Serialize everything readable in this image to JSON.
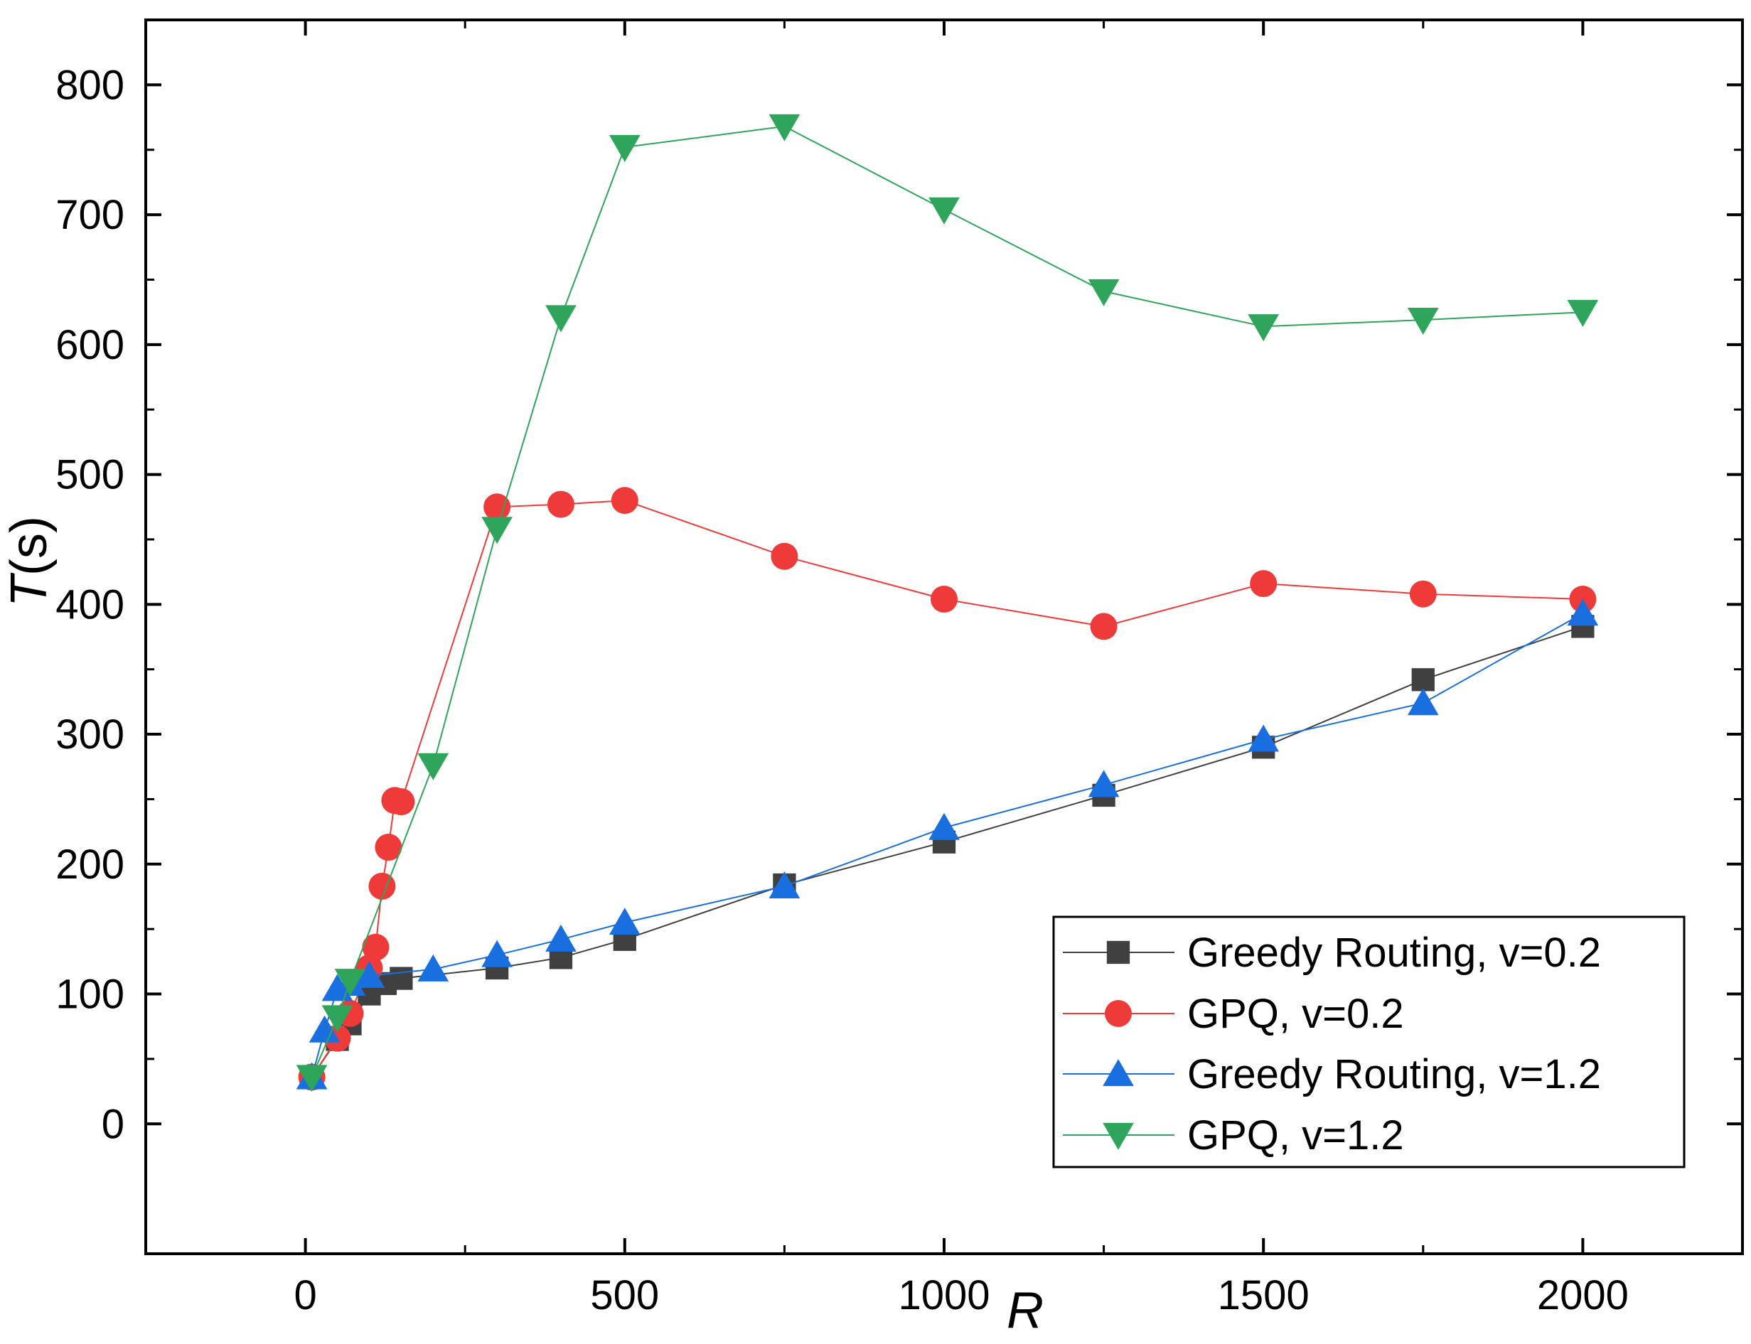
{
  "chart_data": {
    "type": "line",
    "title": "",
    "xlabel": "R",
    "ylabel": "T(s)",
    "ylabel_italic_part": "T",
    "ylabel_rest": "(s)",
    "xlim": [
      -250,
      2250
    ],
    "ylim": [
      -100,
      850
    ],
    "xticks": [
      0,
      500,
      1000,
      1500,
      2000
    ],
    "yticks": [
      0,
      100,
      200,
      300,
      400,
      500,
      600,
      700,
      800
    ],
    "grid": false,
    "legend_position": "bottom-right",
    "series": [
      {
        "name": "Greedy Routing, v=0.2",
        "color": "#404040",
        "marker": "square",
        "x": [
          10,
          50,
          70,
          100,
          125,
          150,
          300,
          400,
          500,
          750,
          1000,
          1250,
          1500,
          1750,
          2000
        ],
        "y": [
          36,
          65,
          77,
          100,
          108,
          112,
          120,
          128,
          142,
          184,
          217,
          253,
          290,
          342,
          383
        ]
      },
      {
        "name": "GPQ, v=0.2",
        "color": "#ef3a3a",
        "marker": "circle",
        "x": [
          10,
          50,
          70,
          100,
          110,
          120,
          130,
          140,
          150,
          300,
          400,
          500,
          750,
          1000,
          1250,
          1500,
          1750,
          2000
        ],
        "y": [
          36,
          66,
          85,
          120,
          136,
          183,
          213,
          249,
          248,
          475,
          477,
          480,
          437,
          404,
          383,
          416,
          408,
          404
        ]
      },
      {
        "name": "Greedy Routing, v=1.2",
        "color": "#1a6fe0",
        "marker": "triangle-up",
        "x": [
          10,
          30,
          50,
          70,
          100,
          200,
          300,
          400,
          500,
          750,
          1000,
          1250,
          1500,
          1750,
          2000
        ],
        "y": [
          36,
          72,
          104,
          108,
          114,
          119,
          130,
          142,
          155,
          183,
          228,
          261,
          296,
          324,
          393
        ]
      },
      {
        "name": "GPQ, v=1.2",
        "color": "#2ea55a",
        "marker": "triangle-down",
        "x": [
          10,
          50,
          70,
          200,
          300,
          400,
          500,
          750,
          1000,
          1250,
          1500,
          1750,
          2000
        ],
        "y": [
          36,
          82,
          110,
          276,
          458,
          621,
          752,
          768,
          704,
          641,
          614,
          619,
          625
        ]
      }
    ]
  }
}
